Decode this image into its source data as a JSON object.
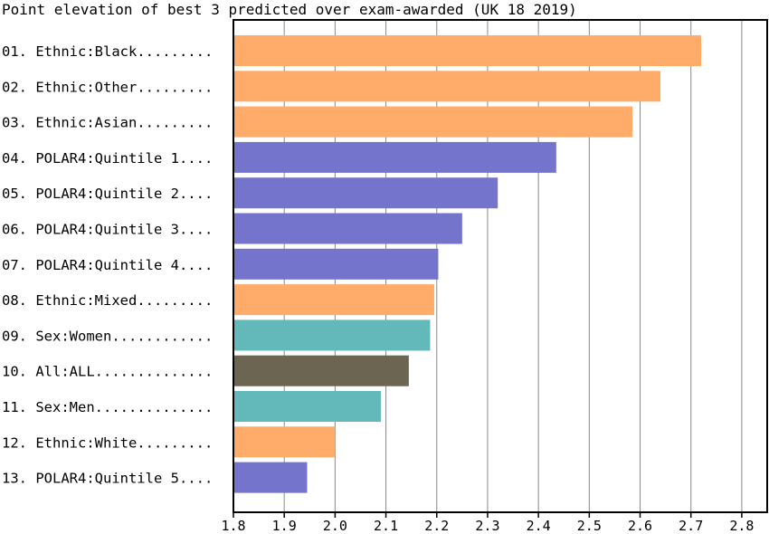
{
  "chart_data": {
    "type": "bar",
    "orientation": "horizontal",
    "title": "Point elevation of best 3 predicted  over exam-awarded (UK 18 2019)",
    "xlim": [
      1.8,
      2.85
    ],
    "xticks": [
      "1.8",
      "1.9",
      "2.0",
      "2.1",
      "2.2",
      "2.3",
      "2.4",
      "2.5",
      "2.6",
      "2.7",
      "2.8"
    ],
    "grid": true,
    "colors": {
      "Ethnic": "#ffab6a",
      "POLAR4": "#7474cc",
      "Sex": "#63b9b9",
      "All": "#6b6552"
    },
    "bars": [
      {
        "label": "01. Ethnic:Black.........",
        "group": "Ethnic",
        "value": 2.72
      },
      {
        "label": "02. Ethnic:Other.........",
        "group": "Ethnic",
        "value": 2.64
      },
      {
        "label": "03. Ethnic:Asian.........",
        "group": "Ethnic",
        "value": 2.585
      },
      {
        "label": "04. POLAR4:Quintile 1....",
        "group": "POLAR4",
        "value": 2.435
      },
      {
        "label": "05. POLAR4:Quintile 2....",
        "group": "POLAR4",
        "value": 2.32
      },
      {
        "label": "06. POLAR4:Quintile 3....",
        "group": "POLAR4",
        "value": 2.25
      },
      {
        "label": "07. POLAR4:Quintile 4....",
        "group": "POLAR4",
        "value": 2.203
      },
      {
        "label": "08. Ethnic:Mixed.........",
        "group": "Ethnic",
        "value": 2.195
      },
      {
        "label": "09. Sex:Women............",
        "group": "Sex",
        "value": 2.187
      },
      {
        "label": "10. All:ALL..............",
        "group": "All",
        "value": 2.145
      },
      {
        "label": "11. Sex:Men..............",
        "group": "Sex",
        "value": 2.09
      },
      {
        "label": "12. Ethnic:White.........",
        "group": "Ethnic",
        "value": 2.0
      },
      {
        "label": "13. POLAR4:Quintile 5....",
        "group": "POLAR4",
        "value": 1.945
      }
    ]
  }
}
